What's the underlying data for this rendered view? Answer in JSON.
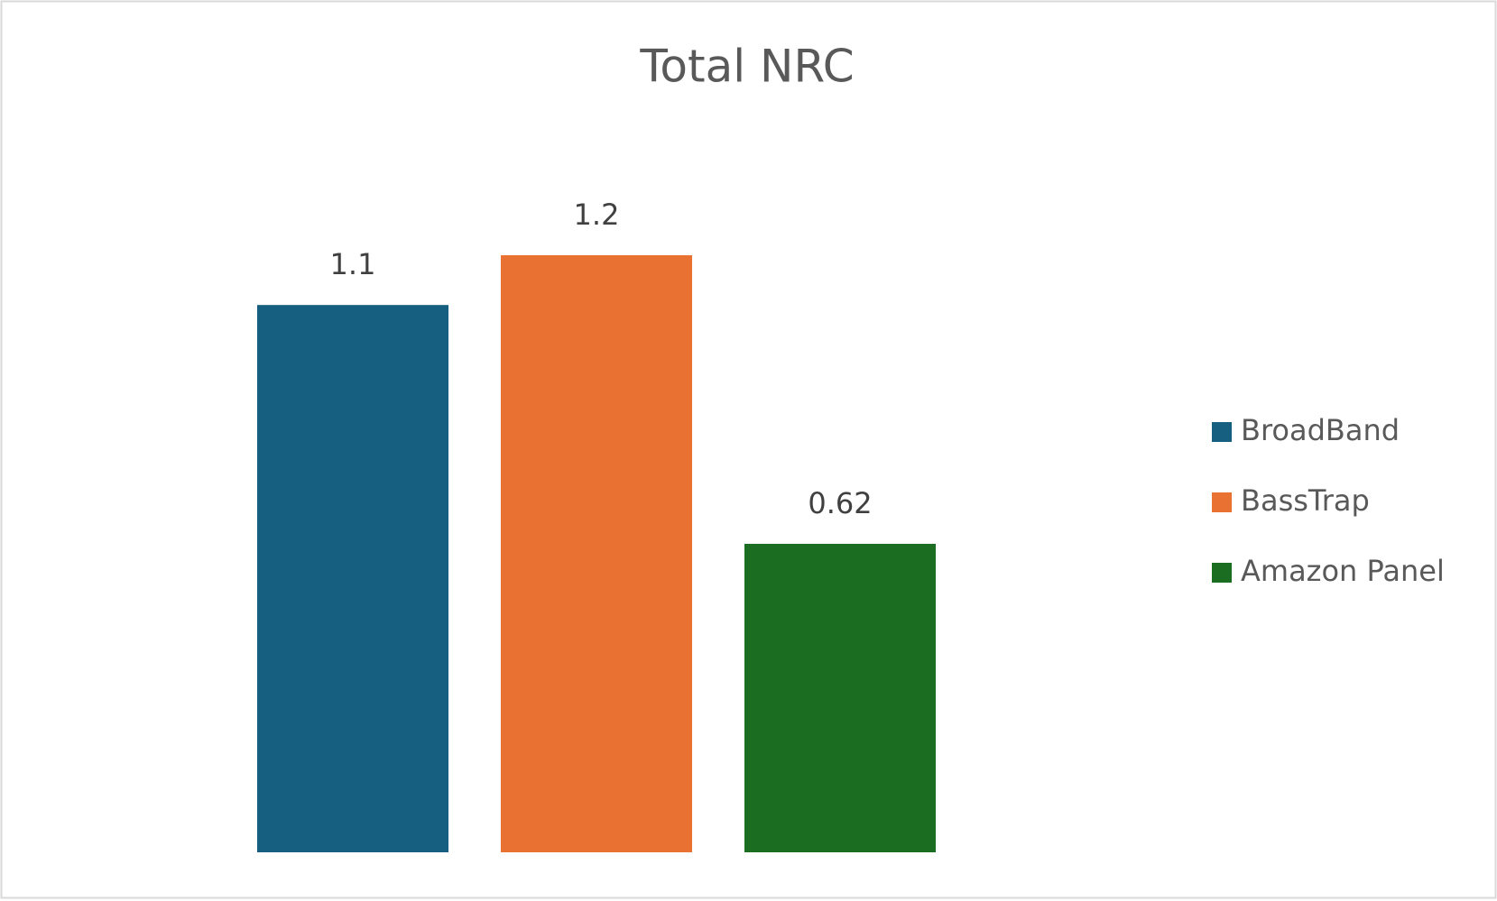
{
  "chart_data": {
    "type": "bar",
    "title": "Total NRC",
    "categories": [
      null
    ],
    "series": [
      {
        "name": "BroadBand",
        "color": "#175f80",
        "values": [
          1.1
        ]
      },
      {
        "name": "BassTrap",
        "color": "#e97132",
        "values": [
          1.2
        ]
      },
      {
        "name": "Amazon Panel",
        "color": "#1b6d22",
        "values": [
          0.62
        ]
      }
    ],
    "legend": "right"
  }
}
